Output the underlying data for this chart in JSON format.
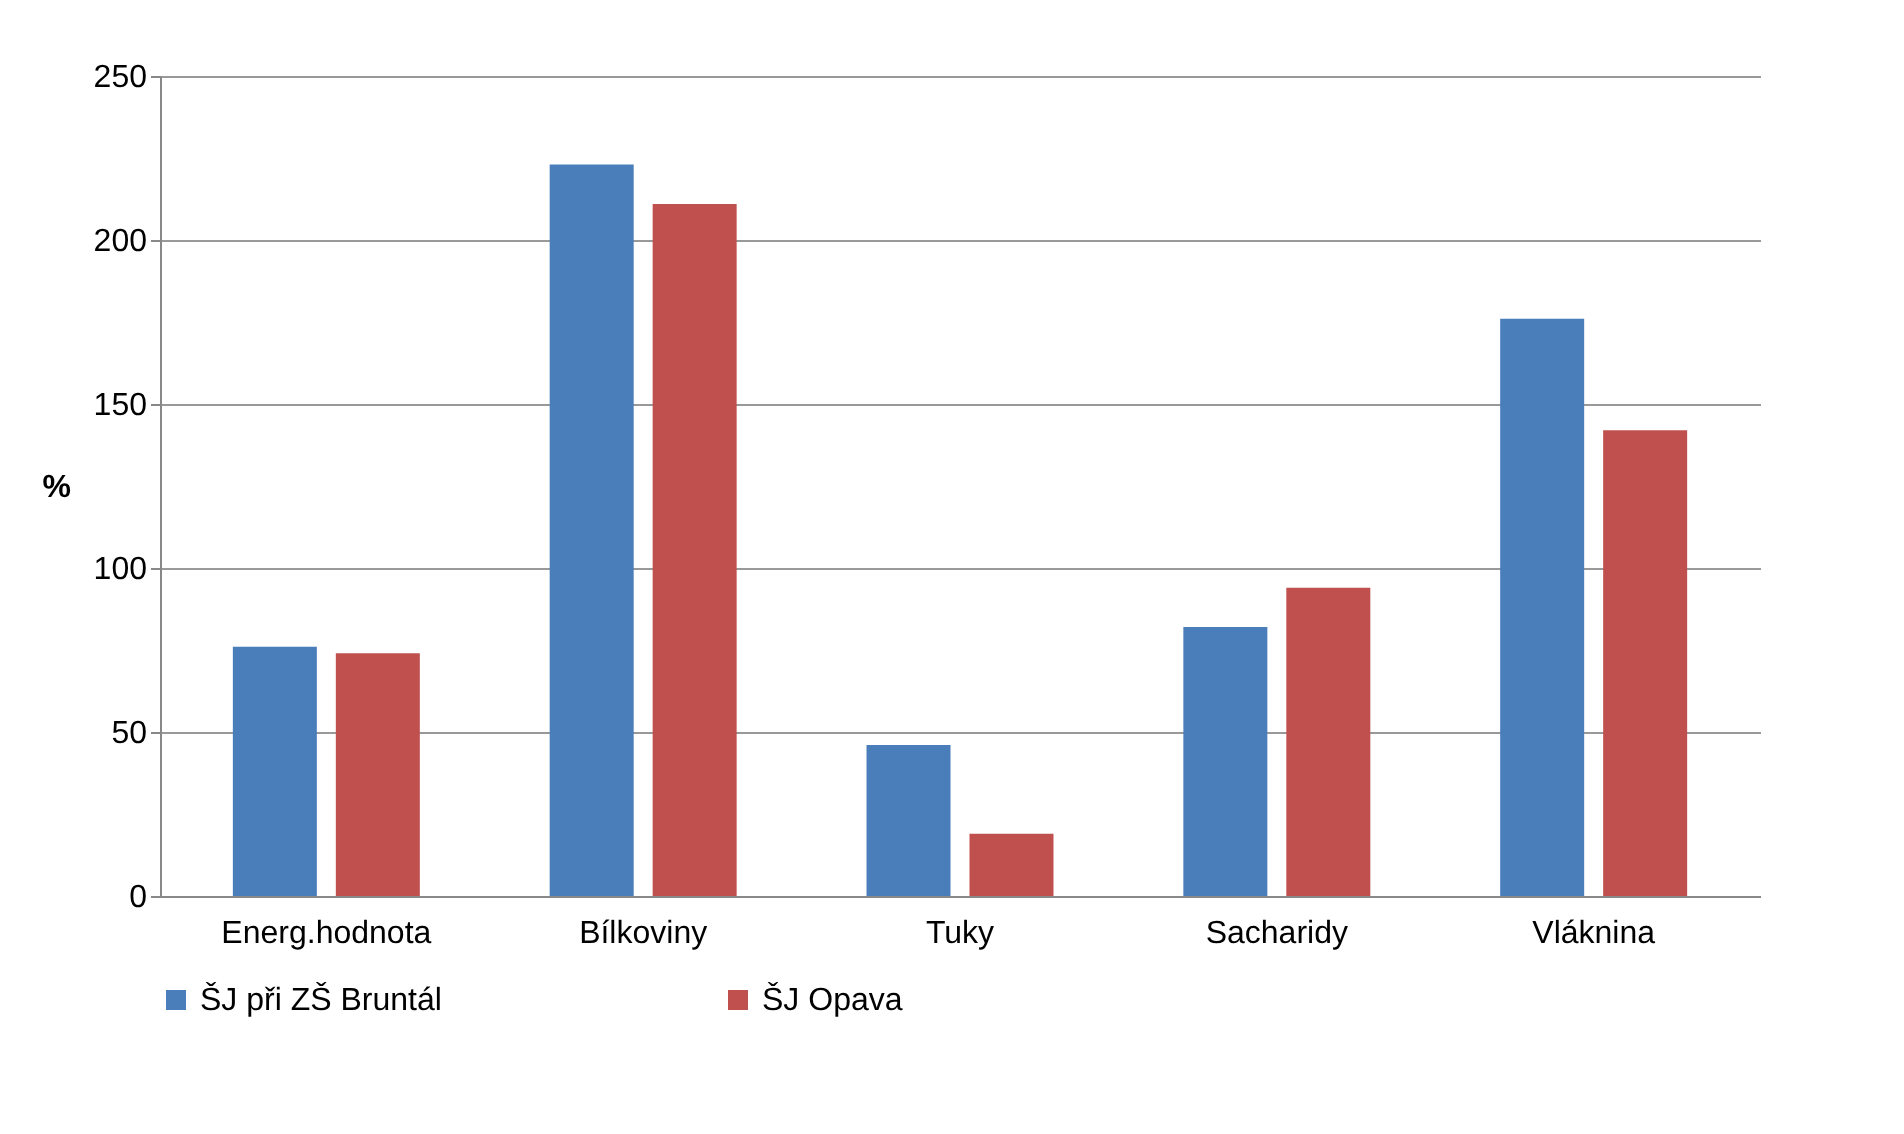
{
  "chart_data": {
    "type": "bar",
    "ylabel": "%",
    "categories": [
      "Energ.hodnota",
      "Bílkoviny",
      "Tuky",
      "Sacharidy",
      "Vláknina"
    ],
    "series": [
      {
        "name": "ŠJ při ZŠ Bruntál",
        "color": "#4a7ebb",
        "values": [
          76,
          223,
          46,
          82,
          176
        ]
      },
      {
        "name": "ŠJ Opava",
        "color": "#c0504d",
        "values": [
          74,
          211,
          19,
          94,
          142
        ]
      }
    ],
    "ylim": [
      0,
      250
    ],
    "yticks": [
      0,
      50,
      100,
      150,
      200,
      250
    ],
    "grid": "y",
    "legend": "bottom"
  }
}
